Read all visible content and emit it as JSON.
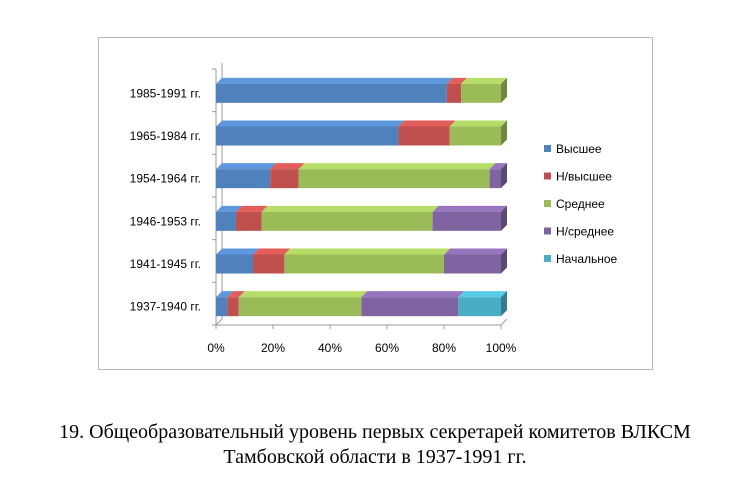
{
  "chart_data": {
    "type": "bar",
    "orientation": "horizontal",
    "stacked": "percent",
    "style": "3d",
    "categories": [
      "1937-1940  гг.",
      "1941-1945  гг.",
      "1946-1953  гг.",
      "1954-1964  гг.",
      "1965-1984  гг.",
      "1985-1991  гг."
    ],
    "series": [
      {
        "name": "Высшее",
        "color": "#4f81bd",
        "values": [
          4,
          13,
          7,
          19,
          64,
          81
        ]
      },
      {
        "name": "Н/высшее",
        "color": "#c0504d",
        "values": [
          4,
          11,
          9,
          10,
          18,
          5
        ]
      },
      {
        "name": "Среднее",
        "color": "#9bbb59",
        "values": [
          43,
          56,
          60,
          67,
          18,
          14
        ]
      },
      {
        "name": "Н/среднее",
        "color": "#8064a2",
        "values": [
          34,
          20,
          24,
          4,
          0,
          0
        ]
      },
      {
        "name": "Начальное",
        "color": "#4bacc6",
        "values": [
          15,
          0,
          0,
          0,
          0,
          0
        ]
      }
    ],
    "xlim": [
      0,
      100
    ],
    "xticks": [
      "0%",
      "20%",
      "40%",
      "60%",
      "80%",
      "100%"
    ],
    "grid": false,
    "legend_position": "right"
  },
  "caption": {
    "line1": "19. Общеобразовательный уровень первых секретарей комитетов ВЛКСМ",
    "line2": "Тамбовской области в 1937-1991 гг."
  }
}
